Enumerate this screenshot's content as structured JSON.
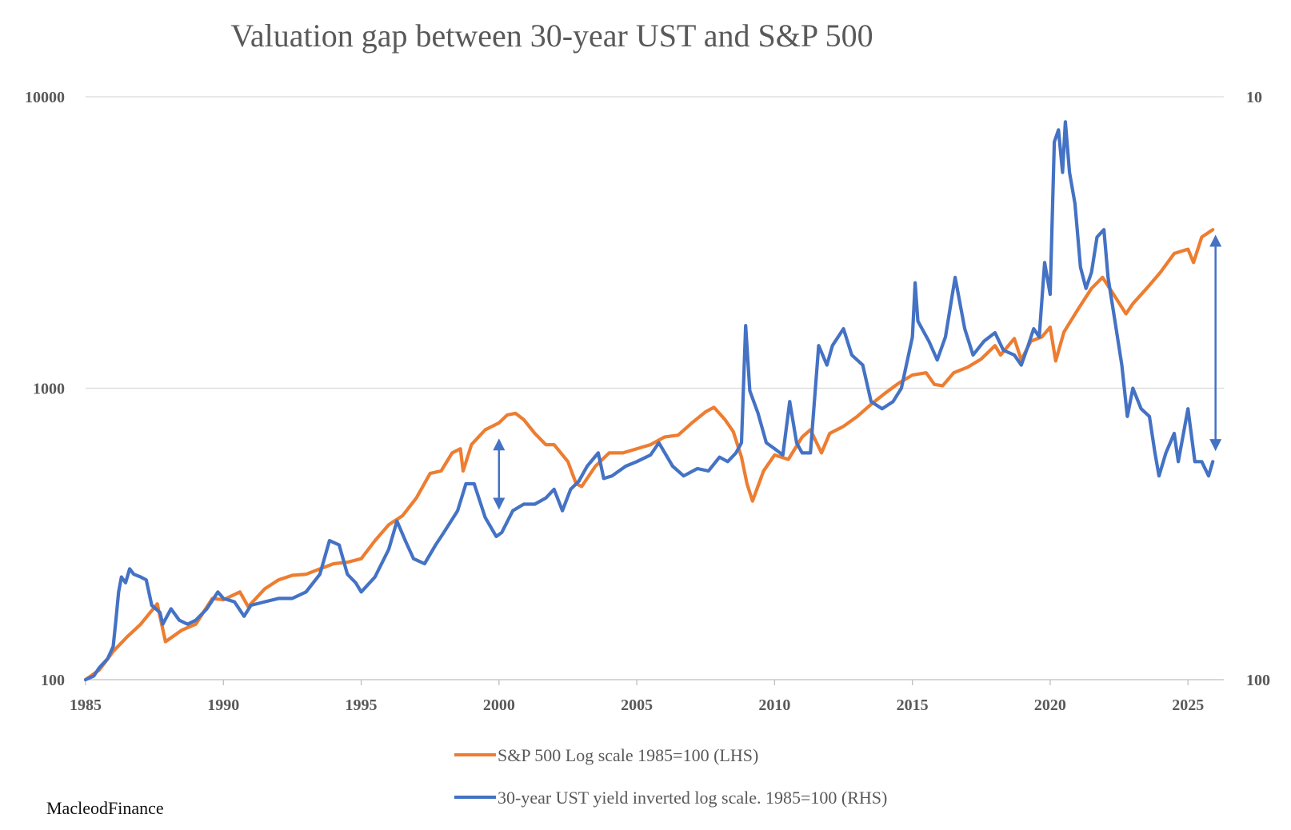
{
  "chart_data": {
    "type": "line",
    "title": "Valuation gap between 30-year UST and S&P 500",
    "x_ticks": [
      "1985",
      "1990",
      "1995",
      "2000",
      "2005",
      "2010",
      "2015",
      "2020",
      "2025"
    ],
    "xlim": [
      1985,
      2026.3
    ],
    "y_left": {
      "scale": "log",
      "ylim": [
        100,
        10000
      ],
      "tick_labels": [
        "10000",
        "1000",
        "100"
      ]
    },
    "y_right": {
      "scale": "log",
      "ylim": [
        100,
        10
      ],
      "inverted": true,
      "tick_labels": [
        "10",
        "100"
      ]
    },
    "grid": true,
    "legend_placement": "bottom",
    "series": [
      {
        "name": "S&P 500 Log scale 1985=100 (LHS)",
        "axis": "left",
        "color": "#ED7D31",
        "points": [
          [
            1985.0,
            100
          ],
          [
            1985.5,
            108
          ],
          [
            1986.0,
            125
          ],
          [
            1986.5,
            140
          ],
          [
            1987.0,
            155
          ],
          [
            1987.6,
            182
          ],
          [
            1987.9,
            135
          ],
          [
            1988.5,
            148
          ],
          [
            1989.0,
            155
          ],
          [
            1989.6,
            190
          ],
          [
            1990.0,
            188
          ],
          [
            1990.6,
            200
          ],
          [
            1990.9,
            178
          ],
          [
            1991.5,
            205
          ],
          [
            1992.0,
            220
          ],
          [
            1992.5,
            228
          ],
          [
            1993.0,
            230
          ],
          [
            1993.5,
            240
          ],
          [
            1994.0,
            250
          ],
          [
            1994.5,
            253
          ],
          [
            1995.0,
            260
          ],
          [
            1995.5,
            300
          ],
          [
            1996.0,
            340
          ],
          [
            1996.5,
            365
          ],
          [
            1997.0,
            420
          ],
          [
            1997.5,
            510
          ],
          [
            1997.9,
            520
          ],
          [
            1998.3,
            600
          ],
          [
            1998.6,
            620
          ],
          [
            1998.7,
            520
          ],
          [
            1999.0,
            640
          ],
          [
            1999.5,
            720
          ],
          [
            2000.0,
            760
          ],
          [
            2000.3,
            810
          ],
          [
            2000.6,
            820
          ],
          [
            2000.9,
            780
          ],
          [
            2001.3,
            700
          ],
          [
            2001.7,
            640
          ],
          [
            2002.0,
            640
          ],
          [
            2002.5,
            560
          ],
          [
            2002.8,
            470
          ],
          [
            2003.0,
            460
          ],
          [
            2003.5,
            540
          ],
          [
            2004.0,
            600
          ],
          [
            2004.5,
            600
          ],
          [
            2005.0,
            620
          ],
          [
            2005.5,
            640
          ],
          [
            2006.0,
            680
          ],
          [
            2006.5,
            690
          ],
          [
            2007.0,
            760
          ],
          [
            2007.5,
            830
          ],
          [
            2007.8,
            860
          ],
          [
            2008.2,
            780
          ],
          [
            2008.5,
            710
          ],
          [
            2008.8,
            580
          ],
          [
            2009.0,
            470
          ],
          [
            2009.2,
            410
          ],
          [
            2009.6,
            520
          ],
          [
            2010.0,
            590
          ],
          [
            2010.5,
            570
          ],
          [
            2011.0,
            680
          ],
          [
            2011.3,
            720
          ],
          [
            2011.7,
            600
          ],
          [
            2012.0,
            700
          ],
          [
            2012.5,
            740
          ],
          [
            2013.0,
            800
          ],
          [
            2013.5,
            880
          ],
          [
            2014.0,
            960
          ],
          [
            2014.5,
            1040
          ],
          [
            2015.0,
            1110
          ],
          [
            2015.5,
            1130
          ],
          [
            2015.8,
            1030
          ],
          [
            2016.1,
            1020
          ],
          [
            2016.5,
            1130
          ],
          [
            2017.0,
            1180
          ],
          [
            2017.5,
            1260
          ],
          [
            2018.0,
            1400
          ],
          [
            2018.2,
            1300
          ],
          [
            2018.7,
            1480
          ],
          [
            2018.95,
            1250
          ],
          [
            2019.3,
            1450
          ],
          [
            2019.7,
            1500
          ],
          [
            2020.0,
            1620
          ],
          [
            2020.2,
            1240
          ],
          [
            2020.5,
            1560
          ],
          [
            2021.0,
            1860
          ],
          [
            2021.5,
            2200
          ],
          [
            2021.9,
            2400
          ],
          [
            2022.3,
            2100
          ],
          [
            2022.75,
            1800
          ],
          [
            2023.0,
            1950
          ],
          [
            2023.5,
            2200
          ],
          [
            2024.0,
            2500
          ],
          [
            2024.5,
            2900
          ],
          [
            2025.0,
            3000
          ],
          [
            2025.2,
            2700
          ],
          [
            2025.5,
            3300
          ],
          [
            2025.9,
            3500
          ]
        ]
      },
      {
        "name": "30-year UST yield inverted log scale. 1985=100 (RHS)",
        "axis": "right",
        "color": "#4472C4",
        "points": [
          [
            1985.0,
            100
          ],
          [
            1985.3,
            103
          ],
          [
            1985.5,
            110
          ],
          [
            1985.8,
            118
          ],
          [
            1986.0,
            130
          ],
          [
            1986.1,
            160
          ],
          [
            1986.2,
            200
          ],
          [
            1986.3,
            225
          ],
          [
            1986.45,
            215
          ],
          [
            1986.6,
            240
          ],
          [
            1986.75,
            230
          ],
          [
            1987.0,
            225
          ],
          [
            1987.2,
            220
          ],
          [
            1987.4,
            180
          ],
          [
            1987.7,
            170
          ],
          [
            1987.8,
            155
          ],
          [
            1988.1,
            175
          ],
          [
            1988.4,
            160
          ],
          [
            1988.7,
            155
          ],
          [
            1989.0,
            160
          ],
          [
            1989.4,
            175
          ],
          [
            1989.8,
            200
          ],
          [
            1990.0,
            190
          ],
          [
            1990.4,
            185
          ],
          [
            1990.75,
            165
          ],
          [
            1991.0,
            180
          ],
          [
            1991.5,
            185
          ],
          [
            1992.0,
            190
          ],
          [
            1992.5,
            190
          ],
          [
            1993.0,
            200
          ],
          [
            1993.5,
            230
          ],
          [
            1993.85,
            300
          ],
          [
            1994.2,
            290
          ],
          [
            1994.5,
            230
          ],
          [
            1994.8,
            215
          ],
          [
            1995.0,
            200
          ],
          [
            1995.5,
            225
          ],
          [
            1996.0,
            280
          ],
          [
            1996.3,
            350
          ],
          [
            1996.6,
            300
          ],
          [
            1996.9,
            260
          ],
          [
            1997.3,
            250
          ],
          [
            1997.7,
            290
          ],
          [
            1998.0,
            320
          ],
          [
            1998.5,
            380
          ],
          [
            1998.8,
            470
          ],
          [
            1999.1,
            470
          ],
          [
            1999.5,
            360
          ],
          [
            1999.9,
            310
          ],
          [
            2000.1,
            320
          ],
          [
            2000.5,
            380
          ],
          [
            2000.9,
            400
          ],
          [
            2001.3,
            400
          ],
          [
            2001.7,
            420
          ],
          [
            2002.0,
            450
          ],
          [
            2002.3,
            380
          ],
          [
            2002.6,
            450
          ],
          [
            2002.9,
            480
          ],
          [
            2003.2,
            540
          ],
          [
            2003.6,
            600
          ],
          [
            2003.8,
            490
          ],
          [
            2004.1,
            500
          ],
          [
            2004.6,
            540
          ],
          [
            2005.0,
            560
          ],
          [
            2005.5,
            590
          ],
          [
            2005.8,
            650
          ],
          [
            2006.3,
            540
          ],
          [
            2006.7,
            500
          ],
          [
            2007.2,
            530
          ],
          [
            2007.6,
            520
          ],
          [
            2008.0,
            580
          ],
          [
            2008.3,
            560
          ],
          [
            2008.6,
            600
          ],
          [
            2008.8,
            650
          ],
          [
            2008.95,
            1640
          ],
          [
            2009.1,
            980
          ],
          [
            2009.4,
            820
          ],
          [
            2009.7,
            650
          ],
          [
            2010.0,
            620
          ],
          [
            2010.3,
            590
          ],
          [
            2010.55,
            900
          ],
          [
            2010.8,
            650
          ],
          [
            2011.0,
            600
          ],
          [
            2011.3,
            600
          ],
          [
            2011.6,
            1400
          ],
          [
            2011.9,
            1200
          ],
          [
            2012.1,
            1400
          ],
          [
            2012.5,
            1600
          ],
          [
            2012.8,
            1300
          ],
          [
            2013.2,
            1200
          ],
          [
            2013.5,
            900
          ],
          [
            2013.9,
            850
          ],
          [
            2014.3,
            900
          ],
          [
            2014.6,
            1000
          ],
          [
            2015.0,
            1500
          ],
          [
            2015.1,
            2300
          ],
          [
            2015.2,
            1700
          ],
          [
            2015.6,
            1450
          ],
          [
            2015.9,
            1250
          ],
          [
            2016.2,
            1500
          ],
          [
            2016.55,
            2400
          ],
          [
            2016.9,
            1600
          ],
          [
            2017.2,
            1300
          ],
          [
            2017.6,
            1450
          ],
          [
            2018.0,
            1550
          ],
          [
            2018.3,
            1350
          ],
          [
            2018.7,
            1300
          ],
          [
            2018.95,
            1200
          ],
          [
            2019.2,
            1400
          ],
          [
            2019.4,
            1600
          ],
          [
            2019.6,
            1500
          ],
          [
            2019.8,
            2700
          ],
          [
            2020.0,
            2100
          ],
          [
            2020.15,
            7000
          ],
          [
            2020.3,
            7700
          ],
          [
            2020.45,
            5500
          ],
          [
            2020.55,
            8200
          ],
          [
            2020.7,
            5500
          ],
          [
            2020.9,
            4300
          ],
          [
            2021.1,
            2600
          ],
          [
            2021.3,
            2200
          ],
          [
            2021.5,
            2500
          ],
          [
            2021.7,
            3300
          ],
          [
            2021.95,
            3500
          ],
          [
            2022.1,
            2400
          ],
          [
            2022.35,
            1700
          ],
          [
            2022.6,
            1200
          ],
          [
            2022.8,
            800
          ],
          [
            2023.0,
            1000
          ],
          [
            2023.3,
            850
          ],
          [
            2023.6,
            800
          ],
          [
            2023.8,
            600
          ],
          [
            2023.95,
            500
          ],
          [
            2024.2,
            600
          ],
          [
            2024.5,
            700
          ],
          [
            2024.65,
            560
          ],
          [
            2025.0,
            850
          ],
          [
            2025.25,
            560
          ],
          [
            2025.5,
            560
          ],
          [
            2025.75,
            500
          ],
          [
            2025.9,
            560
          ]
        ]
      }
    ],
    "annotations": [
      {
        "type": "double-arrow",
        "x": 2000,
        "y_from": 660,
        "y_to": 390,
        "axis": "left",
        "color": "#4472C4"
      },
      {
        "type": "double-arrow",
        "x": 2026.0,
        "y_from": 3300,
        "y_to": 620,
        "axis": "left",
        "color": "#4472C4"
      }
    ]
  },
  "source_label": "MacleodFinance"
}
